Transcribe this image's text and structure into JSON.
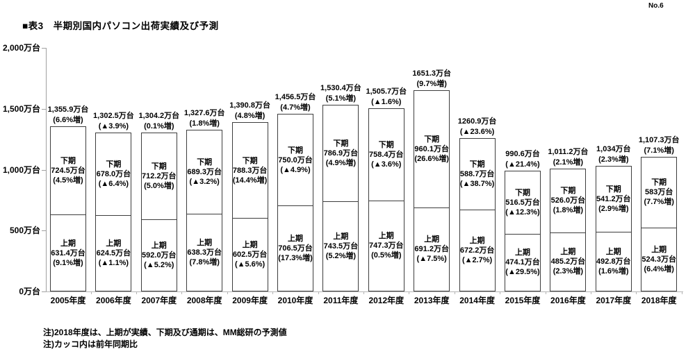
{
  "page": {
    "no": "No.6",
    "title": "■表3　半期別国内パソコン出荷実績及び予測",
    "notes": [
      "注)2018年度は、上期が実績、下期及び通期は、MM総研の予測値",
      "注)カッコ内は前年同期比"
    ]
  },
  "chart_data": {
    "type": "bar",
    "subtype": "stacked",
    "title": "半期別国内パソコン出荷実績及び予測",
    "unit": "万台",
    "ylim": [
      0,
      2000
    ],
    "grid": false,
    "legend": "none",
    "y_ticks": [
      {
        "value": 0,
        "label": "0万台"
      },
      {
        "value": 500,
        "label": "500万台"
      },
      {
        "value": 1000,
        "label": "1,000万台"
      },
      {
        "value": 1500,
        "label": "1,500万台"
      },
      {
        "value": 2000,
        "label": "2,000万台"
      }
    ],
    "series_names": [
      "上期",
      "下期"
    ],
    "bars": [
      {
        "category": "2005年度",
        "total": {
          "value": 1355.9,
          "label": "1,355.9万台",
          "change": "(6.6%増)"
        },
        "second_half": {
          "name": "下期",
          "value": 724.5,
          "label": "724.5万台",
          "change": "(4.5%増)"
        },
        "first_half": {
          "name": "上期",
          "value": 631.4,
          "label": "631.4万台",
          "change": "(9.1%増)"
        }
      },
      {
        "category": "2006年度",
        "total": {
          "value": 1302.5,
          "label": "1,302.5万台",
          "change": "(▲3.9%)"
        },
        "second_half": {
          "name": "下期",
          "value": 678.0,
          "label": "678.0万台",
          "change": "(▲6.4%)"
        },
        "first_half": {
          "name": "上期",
          "value": 624.5,
          "label": "624.5万台",
          "change": "(▲1.1%)"
        }
      },
      {
        "category": "2007年度",
        "total": {
          "value": 1304.2,
          "label": "1,304.2万台",
          "change": "(0.1%増)"
        },
        "second_half": {
          "name": "下期",
          "value": 712.2,
          "label": "712.2万台",
          "change": "(5.0%増)"
        },
        "first_half": {
          "name": "上期",
          "value": 592.0,
          "label": "592.0万台",
          "change": "(▲5.2%)"
        }
      },
      {
        "category": "2008年度",
        "total": {
          "value": 1327.6,
          "label": "1,327.6万台",
          "change": "(1.8%増)"
        },
        "second_half": {
          "name": "下期",
          "value": 689.3,
          "label": "689.3万台",
          "change": "(▲3.2%)"
        },
        "first_half": {
          "name": "上期",
          "value": 638.3,
          "label": "638.3万台",
          "change": "(7.8%増)"
        }
      },
      {
        "category": "2009年度",
        "total": {
          "value": 1390.8,
          "label": "1,390.8万台",
          "change": "(4.8%増)"
        },
        "second_half": {
          "name": "下期",
          "value": 788.3,
          "label": "788.3万台",
          "change": "(14.4%増)"
        },
        "first_half": {
          "name": "上期",
          "value": 602.5,
          "label": "602.5万台",
          "change": "(▲5.6%)"
        }
      },
      {
        "category": "2010年度",
        "total": {
          "value": 1456.5,
          "label": "1,456.5万台",
          "change": "(4.7%増)"
        },
        "second_half": {
          "name": "下期",
          "value": 750.0,
          "label": "750.0万台",
          "change": "(▲4.9%)"
        },
        "first_half": {
          "name": "上期",
          "value": 706.5,
          "label": "706.5万台",
          "change": "(17.3%増)"
        }
      },
      {
        "category": "2011年度",
        "total": {
          "value": 1530.4,
          "label": "1,530.4万台",
          "change": "(5.1%増)"
        },
        "second_half": {
          "name": "下期",
          "value": 786.9,
          "label": "786.9万台",
          "change": "(4.9%増)"
        },
        "first_half": {
          "name": "上期",
          "value": 743.5,
          "label": "743.5万台",
          "change": "(5.2%増)"
        }
      },
      {
        "category": "2012年度",
        "total": {
          "value": 1505.7,
          "label": "1,505.7万台",
          "change": "(▲1.6%)"
        },
        "second_half": {
          "name": "下期",
          "value": 758.4,
          "label": "758.4万台",
          "change": "(▲3.6%)"
        },
        "first_half": {
          "name": "上期",
          "value": 747.3,
          "label": "747.3万台",
          "change": "(0.5%増)"
        }
      },
      {
        "category": "2013年度",
        "total": {
          "value": 1651.3,
          "label": "1651.3万台",
          "change": "(9.7%増)"
        },
        "second_half": {
          "name": "下期",
          "value": 960.1,
          "label": "960.1万台",
          "change": "(26.6%増)"
        },
        "first_half": {
          "name": "上期",
          "value": 691.2,
          "label": "691.2万台",
          "change": "(▲7.5%)"
        }
      },
      {
        "category": "2014年度",
        "total": {
          "value": 1260.9,
          "label": "1260.9万台",
          "change": "(▲23.6%)"
        },
        "second_half": {
          "name": "下期",
          "value": 588.7,
          "label": "588.7万台",
          "change": "(▲38.7%)"
        },
        "first_half": {
          "name": "上期",
          "value": 672.2,
          "label": "672.2万台",
          "change": "(▲2.7%)"
        }
      },
      {
        "category": "2015年度",
        "total": {
          "value": 990.6,
          "label": "990.6万台",
          "change": "(▲21.4%)"
        },
        "second_half": {
          "name": "下期",
          "value": 516.5,
          "label": "516.5万台",
          "change": "(▲12.3%)"
        },
        "first_half": {
          "name": "上期",
          "value": 474.1,
          "label": "474.1万台",
          "change": "(▲29.5%)"
        }
      },
      {
        "category": "2016年度",
        "total": {
          "value": 1011.2,
          "label": "1,011.2万台",
          "change": "(2.1%増)"
        },
        "second_half": {
          "name": "下期",
          "value": 526.0,
          "label": "526.0万台",
          "change": "(1.8%増)"
        },
        "first_half": {
          "name": "上期",
          "value": 485.2,
          "label": "485.2万台",
          "change": "(2.3%増)"
        }
      },
      {
        "category": "2017年度",
        "total": {
          "value": 1034,
          "label": "1,034万台",
          "change": "(2.3%増)"
        },
        "second_half": {
          "name": "下期",
          "value": 541.2,
          "label": "541.2万台",
          "change": "(2.9%増)"
        },
        "first_half": {
          "name": "上期",
          "value": 492.8,
          "label": "492.8万台",
          "change": "(1.6%増)"
        }
      },
      {
        "category": "2018年度",
        "total": {
          "value": 1107.3,
          "label": "1,107.3万台",
          "change": "(7.1%増)"
        },
        "second_half": {
          "name": "下期",
          "value": 583,
          "label": "583万台",
          "change": "(7.7%増)"
        },
        "first_half": {
          "name": "上期",
          "value": 524.3,
          "label": "524.3万台",
          "change": "(6.4%増)"
        }
      }
    ],
    "colors": {
      "bar_fill": "#ffffff",
      "bar_border": "#3c3c3c",
      "axis": "#a0a0a0",
      "text": "#000000"
    }
  }
}
